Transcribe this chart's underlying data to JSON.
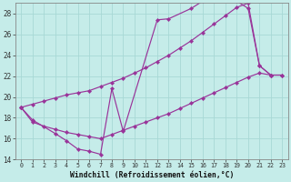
{
  "xlabel": "Windchill (Refroidissement éolien,°C)",
  "xlim": [
    -0.5,
    23.5
  ],
  "ylim": [
    14,
    29
  ],
  "yticks": [
    14,
    16,
    18,
    20,
    22,
    24,
    26,
    28
  ],
  "xticks": [
    0,
    1,
    2,
    3,
    4,
    5,
    6,
    7,
    8,
    9,
    10,
    11,
    12,
    13,
    14,
    15,
    16,
    17,
    18,
    19,
    20,
    21,
    22,
    23
  ],
  "background_color": "#c5ece9",
  "grid_color": "#a8d8d5",
  "line_color": "#993399",
  "line1_x": [
    0,
    1,
    3,
    4,
    5,
    6,
    7,
    8,
    9,
    12,
    13,
    15,
    16,
    17,
    18,
    19,
    20,
    21,
    22,
    23
  ],
  "line1_y": [
    19.0,
    17.8,
    16.5,
    15.8,
    15.0,
    14.8,
    14.5,
    20.8,
    16.7,
    27.4,
    27.5,
    28.5,
    29.2,
    29.3,
    29.3,
    29.2,
    28.5,
    23.0,
    22.1,
    22.1
  ],
  "line2_x": [
    0,
    1,
    2,
    3,
    4,
    5,
    6,
    7,
    8,
    9,
    10,
    11,
    12,
    13,
    14,
    15,
    16,
    17,
    18,
    19,
    20,
    21,
    22
  ],
  "line2_y": [
    19.0,
    19.3,
    19.6,
    19.9,
    20.2,
    20.4,
    20.6,
    21.0,
    21.4,
    21.8,
    22.3,
    22.8,
    23.4,
    24.0,
    24.7,
    25.4,
    26.2,
    27.0,
    27.8,
    28.6,
    29.0,
    23.0,
    22.1
  ],
  "line3_x": [
    0,
    1,
    2,
    3,
    4,
    5,
    6,
    7,
    8,
    9,
    10,
    11,
    12,
    13,
    14,
    15,
    16,
    17,
    18,
    19,
    20,
    21,
    22,
    23
  ],
  "line3_y": [
    19.0,
    17.6,
    17.2,
    16.9,
    16.6,
    16.4,
    16.2,
    16.0,
    16.4,
    16.8,
    17.2,
    17.6,
    18.0,
    18.4,
    18.9,
    19.4,
    19.9,
    20.4,
    20.9,
    21.4,
    21.9,
    22.3,
    22.1,
    22.1
  ]
}
